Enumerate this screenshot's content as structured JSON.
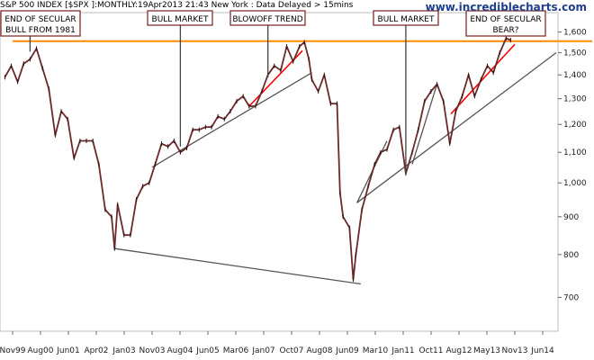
{
  "header": {
    "title": "S&P 500 INDEX [$SPX ]:MONTHLY:19Apr2013 21:43 New York : Data Delayed > 15mins",
    "site": "www.incrediblecharts.com"
  },
  "colors": {
    "price": "#6b2a2a",
    "resistance": "#ff8c00",
    "trend_grey": "#555555",
    "trend_red": "#ff0000",
    "box_border": "#7a1f1f"
  },
  "chart_data": {
    "type": "line",
    "title": "S&P 500 INDEX [$SPX ]:MONTHLY",
    "ylim": [
      630,
      1700
    ],
    "y_scale": "log",
    "y_ticks": [
      700,
      800,
      900,
      1000,
      1100,
      1200,
      1300,
      1400,
      1500,
      1600
    ],
    "y_tick_labels": [
      "700",
      "800",
      "900",
      "1,000",
      "1,100",
      "1,200",
      "1,300",
      "1,400",
      "1,500",
      "1,600"
    ],
    "x_tick_labels": [
      "Nov99",
      "Aug00",
      "Jun01",
      "Apr02",
      "Jan03",
      "Nov03",
      "Aug04",
      "Jun05",
      "Mar06",
      "Jan07",
      "Oct07",
      "Aug08",
      "Jun09",
      "Mar10",
      "Jan11",
      "Oct11",
      "Aug12",
      "May13",
      "Nov13",
      "Jun14"
    ],
    "series": [
      {
        "values": [
          [
            1999.83,
            1390
          ],
          [
            2000.0,
            1440
          ],
          [
            2000.17,
            1370
          ],
          [
            2000.33,
            1450
          ],
          [
            2000.5,
            1470
          ],
          [
            2000.67,
            1520
          ],
          [
            2000.83,
            1430
          ],
          [
            2001.0,
            1340
          ],
          [
            2001.17,
            1160
          ],
          [
            2001.33,
            1250
          ],
          [
            2001.5,
            1220
          ],
          [
            2001.67,
            1080
          ],
          [
            2001.83,
            1140
          ],
          [
            2002.0,
            1140
          ],
          [
            2002.17,
            1140
          ],
          [
            2002.33,
            1060
          ],
          [
            2002.5,
            920
          ],
          [
            2002.67,
            900
          ],
          [
            2002.75,
            815
          ],
          [
            2002.83,
            935
          ],
          [
            2003.0,
            850
          ],
          [
            2003.17,
            850
          ],
          [
            2003.33,
            950
          ],
          [
            2003.5,
            990
          ],
          [
            2003.67,
            1000
          ],
          [
            2003.83,
            1060
          ],
          [
            2004.0,
            1130
          ],
          [
            2004.17,
            1120
          ],
          [
            2004.33,
            1140
          ],
          [
            2004.5,
            1100
          ],
          [
            2004.67,
            1115
          ],
          [
            2004.83,
            1180
          ],
          [
            2005.0,
            1180
          ],
          [
            2005.17,
            1190
          ],
          [
            2005.33,
            1190
          ],
          [
            2005.5,
            1230
          ],
          [
            2005.67,
            1220
          ],
          [
            2005.83,
            1250
          ],
          [
            2006.0,
            1290
          ],
          [
            2006.17,
            1310
          ],
          [
            2006.33,
            1270
          ],
          [
            2006.5,
            1270
          ],
          [
            2006.67,
            1330
          ],
          [
            2006.83,
            1400
          ],
          [
            2007.0,
            1440
          ],
          [
            2007.17,
            1420
          ],
          [
            2007.33,
            1530
          ],
          [
            2007.5,
            1460
          ],
          [
            2007.67,
            1530
          ],
          [
            2007.8,
            1550
          ],
          [
            2007.92,
            1470
          ],
          [
            2008.0,
            1380
          ],
          [
            2008.17,
            1330
          ],
          [
            2008.33,
            1400
          ],
          [
            2008.5,
            1280
          ],
          [
            2008.67,
            1280
          ],
          [
            2008.75,
            970
          ],
          [
            2008.83,
            900
          ],
          [
            2009.0,
            870
          ],
          [
            2009.1,
            740
          ],
          [
            2009.17,
            800
          ],
          [
            2009.33,
            920
          ],
          [
            2009.5,
            990
          ],
          [
            2009.67,
            1060
          ],
          [
            2009.83,
            1100
          ],
          [
            2010.0,
            1110
          ],
          [
            2010.17,
            1180
          ],
          [
            2010.33,
            1190
          ],
          [
            2010.5,
            1030
          ],
          [
            2010.67,
            1100
          ],
          [
            2010.83,
            1180
          ],
          [
            2011.0,
            1290
          ],
          [
            2011.17,
            1330
          ],
          [
            2011.33,
            1360
          ],
          [
            2011.5,
            1290
          ],
          [
            2011.67,
            1130
          ],
          [
            2011.83,
            1250
          ],
          [
            2012.0,
            1310
          ],
          [
            2012.17,
            1400
          ],
          [
            2012.33,
            1310
          ],
          [
            2012.5,
            1380
          ],
          [
            2012.67,
            1440
          ],
          [
            2012.83,
            1410
          ],
          [
            2013.0,
            1500
          ],
          [
            2013.17,
            1570
          ],
          [
            2013.29,
            1560
          ]
        ]
      }
    ],
    "resistance_level": 1555,
    "trend_lines": [
      {
        "color": "grey",
        "from": [
          2002.75,
          815
        ],
        "to": [
          2009.3,
          730
        ]
      },
      {
        "color": "grey",
        "from": [
          2003.75,
          1050
        ],
        "to": [
          2008.0,
          1410
        ]
      },
      {
        "color": "red",
        "from": [
          2006.33,
          1270
        ],
        "to": [
          2007.75,
          1510
        ]
      },
      {
        "color": "grey",
        "from": [
          2009.2,
          940
        ],
        "to": [
          2010.0,
          1140
        ]
      },
      {
        "color": "grey",
        "from": [
          2010.67,
          1060
        ],
        "to": [
          2011.33,
          1360
        ]
      },
      {
        "color": "grey",
        "from": [
          2009.2,
          940
        ],
        "to": [
          2014.5,
          1500
        ]
      },
      {
        "color": "red",
        "from": [
          2011.7,
          1240
        ],
        "to": [
          2013.4,
          1540
        ]
      }
    ],
    "annotations": [
      {
        "text": [
          "END OF SECULAR",
          "BULL FROM 1981"
        ],
        "anchor": [
          2000.5,
          1505
        ]
      },
      {
        "text": [
          "BULL MARKET"
        ],
        "anchor": [
          2004.5,
          1120
        ]
      },
      {
        "text": [
          "BLOWOFF TREND"
        ],
        "anchor": [
          2006.83,
          1390
        ]
      },
      {
        "text": [
          "BULL MARKET"
        ],
        "anchor": [
          2010.5,
          1030
        ]
      },
      {
        "text": [
          "END OF SECULAR",
          "BEAR?"
        ],
        "anchor": [
          2013.17,
          1575
        ]
      }
    ]
  }
}
